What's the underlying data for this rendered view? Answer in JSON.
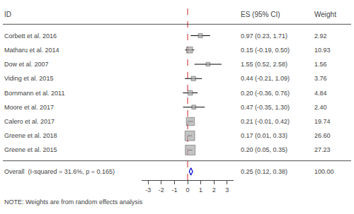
{
  "chart_data": {
    "type": "forest",
    "headers": [
      "ID",
      "ES (95% CI)",
      "Weight"
    ],
    "categories": [
      "Corbett et al. 2016",
      "Matharu et al. 2014",
      "Dow et al. 2007",
      "Viding et al. 2015",
      "Bornmann et al. 2011",
      "Moore et al. 2017",
      "Calero et al. 2017",
      "Greene et al. 2018",
      "Greene et al. 2015"
    ],
    "values": [
      0.97,
      0.15,
      1.55,
      0.44,
      0.2,
      0.47,
      0.21,
      0.17,
      0.2
    ],
    "ci_lo": [
      0.23,
      -0.19,
      0.52,
      -0.21,
      -0.36,
      -0.35,
      -0.01,
      0.01,
      0.05
    ],
    "ci_hi": [
      1.71,
      0.5,
      2.58,
      1.09,
      0.76,
      1.3,
      0.42,
      0.33,
      0.35
    ],
    "weights": [
      2.92,
      10.93,
      1.56,
      3.76,
      4.84,
      2.4,
      19.74,
      26.6,
      27.23
    ],
    "value_labels": [
      "0.97 (0.23, 1.71)",
      "0.15 (-0.19, 0.50)",
      "1.55 (0.52, 2.58)",
      "0.44 (-0.21, 1.09)",
      "0.20 (-0.36, 0.76)",
      "0.47 (-0.35, 1.30)",
      "0.21 (-0.01, 0.42)",
      "0.17 (0.01, 0.33)",
      "0.20 (0.05, 0.35)"
    ],
    "weight_labels": [
      "2.92",
      "10.93",
      "1.56",
      "3.76",
      "4.84",
      "2.40",
      "19.74",
      "26.60",
      "27.23"
    ],
    "overall": {
      "label": "Overall  (I-squared = 31.6%, p = 0.165)",
      "value": 0.25,
      "ci_lo": 0.12,
      "ci_hi": 0.38,
      "value_label": "0.25 (0.12, 0.38)",
      "weight_label": "100.00",
      "marker": "diamond",
      "color": "#0000cc",
      "fill_color": "#ffffff"
    },
    "note": "NOTE: Weights are from random effects analysis",
    "reference_line": {
      "x": 0,
      "color": "#cc2222",
      "line_style": "dash"
    },
    "xlim": [
      -3.5,
      3.5
    ],
    "xticks": [
      -3,
      -2,
      -1,
      0,
      1,
      2,
      3
    ],
    "grid": false,
    "marker": "square",
    "color": "#aaaaaa",
    "line_color": "#000000"
  }
}
